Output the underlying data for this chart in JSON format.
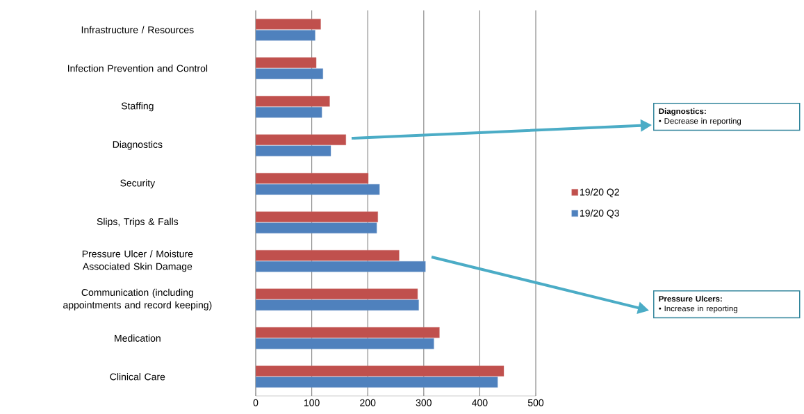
{
  "chart_data": {
    "type": "bar",
    "orientation": "horizontal",
    "categories": [
      "Infrastructure / Resources",
      "Infection Prevention and Control",
      "Staffing",
      "Diagnostics",
      "Security",
      "Slips, Trips & Falls",
      "Pressure Ulcer / Moisture Associated Skin Damage",
      "Communication (including appointments and record keeping)",
      "Medication",
      "Clinical Care"
    ],
    "series": [
      {
        "name": "19/20 Q2",
        "color": "#c0504d",
        "values": [
          116,
          108,
          132,
          161,
          201,
          218,
          256,
          289,
          328,
          443
        ]
      },
      {
        "name": "19/20 Q3",
        "color": "#4f81bd",
        "values": [
          106,
          120,
          118,
          134,
          221,
          216,
          303,
          291,
          318,
          432
        ]
      }
    ],
    "xlim": [
      0,
      500
    ],
    "xticks": [
      0,
      100,
      200,
      300,
      400,
      500
    ],
    "grid": "x",
    "legend": "right",
    "annotations": [
      "**Diagnostics:**",
      "• Decrease in reporting",
      "**Pressure Ulcers:**",
      "• Increase in reporting"
    ]
  }
}
